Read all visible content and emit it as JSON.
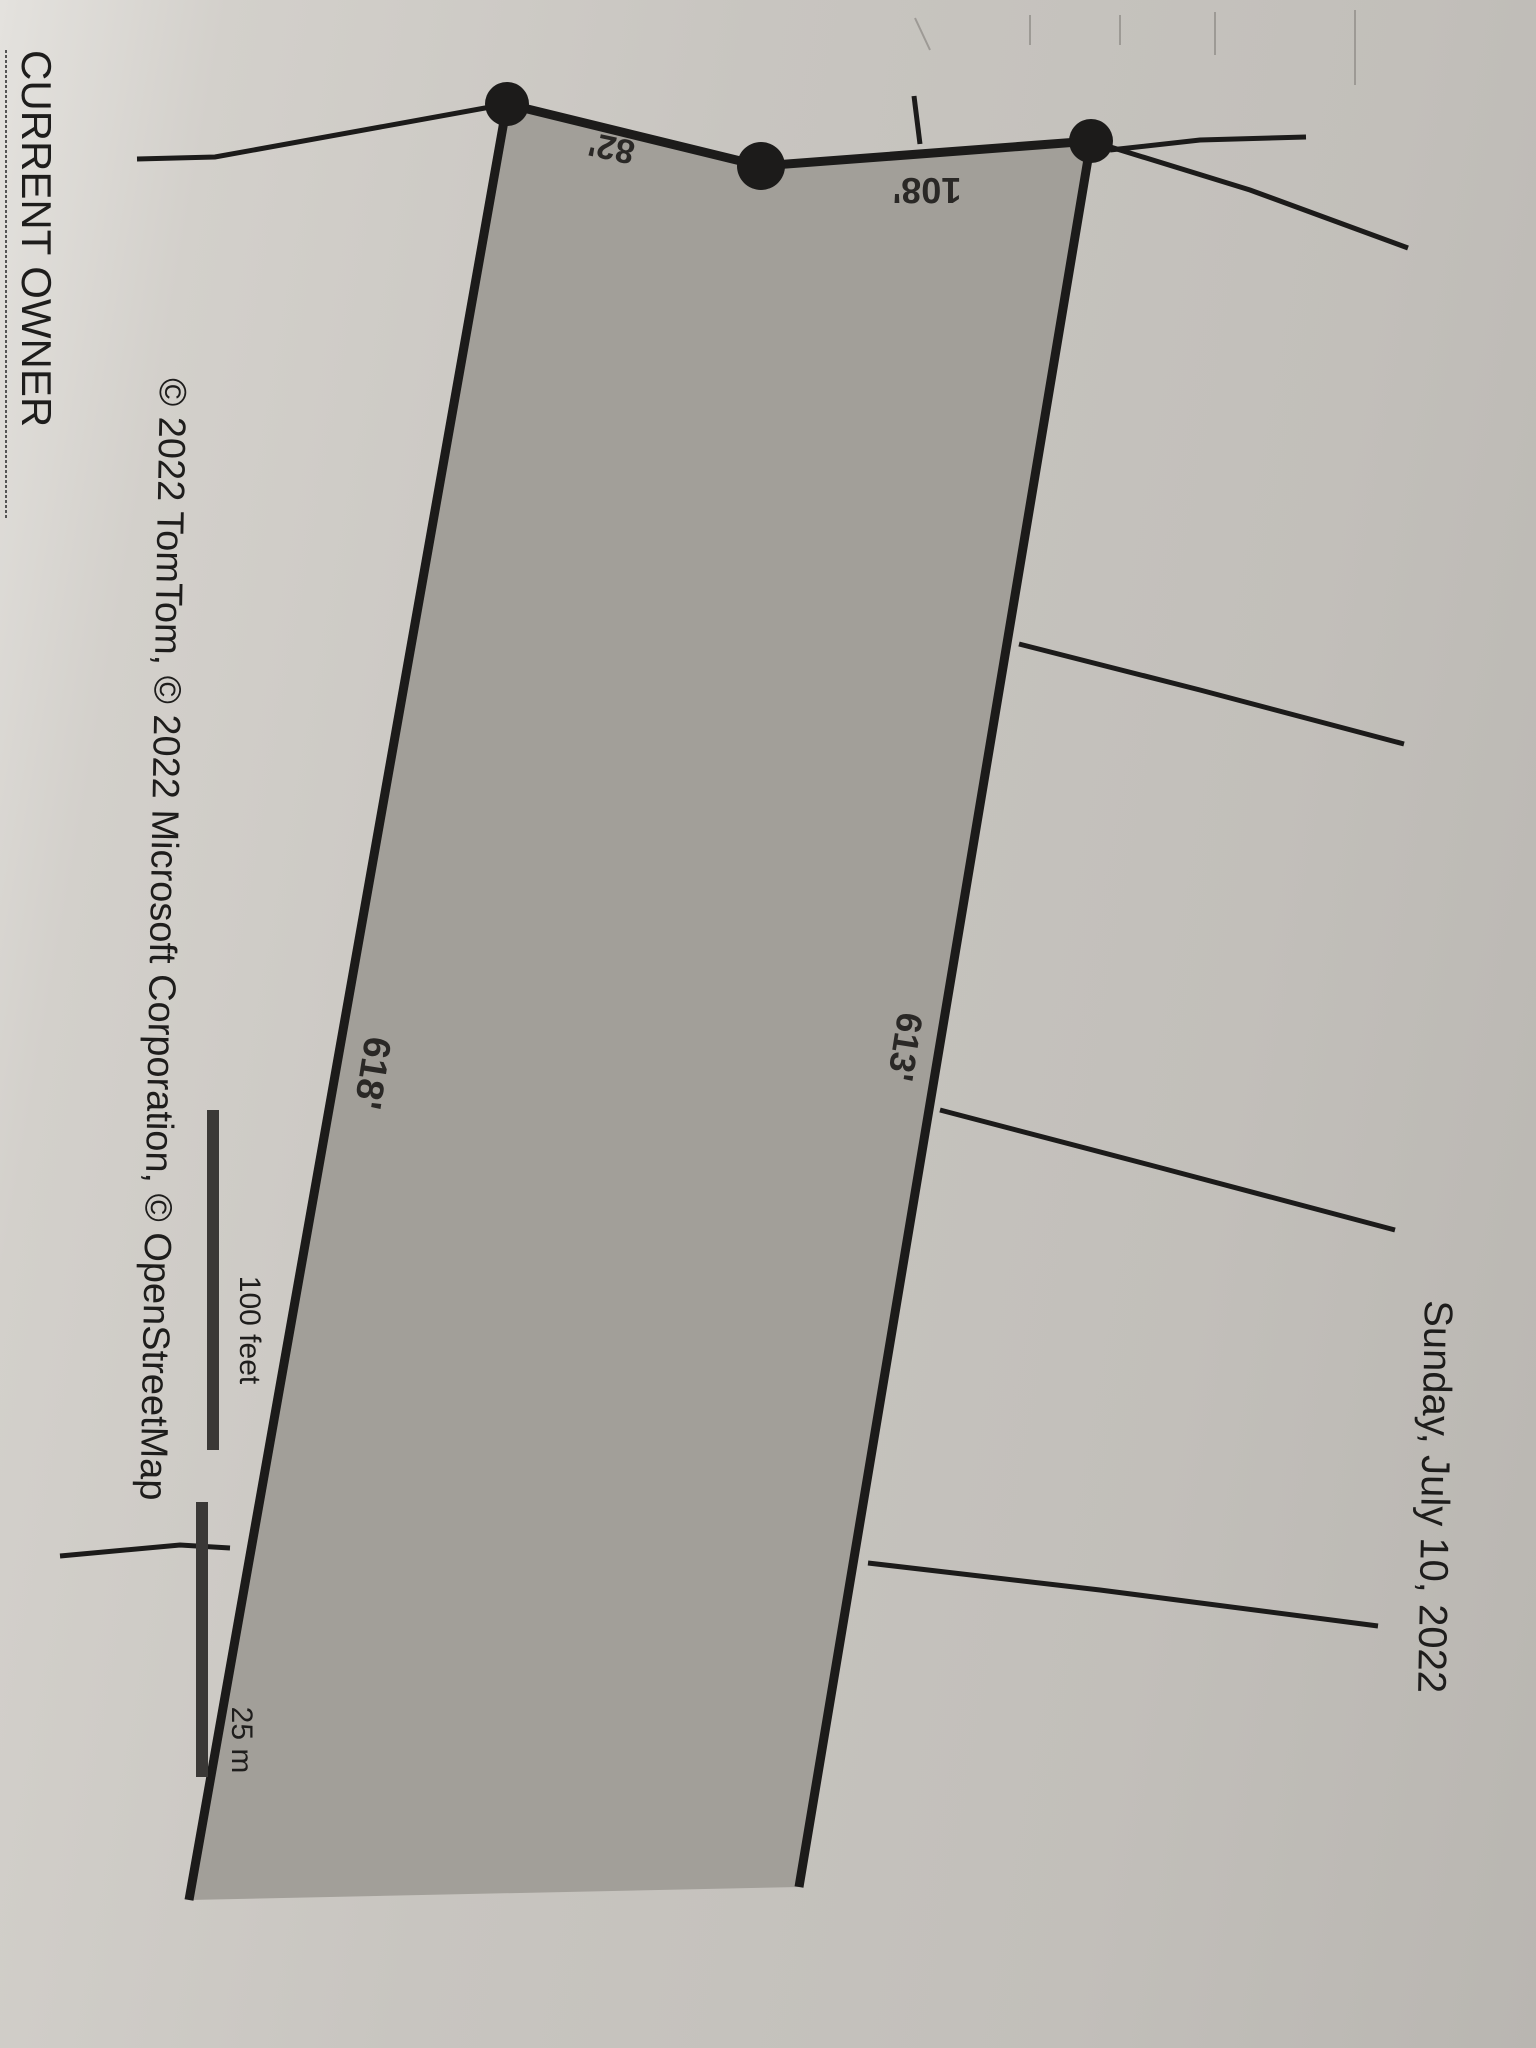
{
  "header": {
    "date": "Sunday, July 10, 2022"
  },
  "map": {
    "parcel_dimensions": {
      "front_left": "82'",
      "front_right": "108'",
      "side_right": "613'",
      "side_left": "618'"
    },
    "scale_bar": {
      "imperial": "100 feet",
      "metric": "25 m"
    },
    "attribution": "© 2022 TomTom, © 2022 Microsoft Corporation, © OpenStreetMap",
    "colors": {
      "parcel_fill": "#a29f99",
      "boundary": "#1c1b1a",
      "paper": "#c9c6c1"
    }
  },
  "section": {
    "heading": "CURRENT OWNER"
  }
}
